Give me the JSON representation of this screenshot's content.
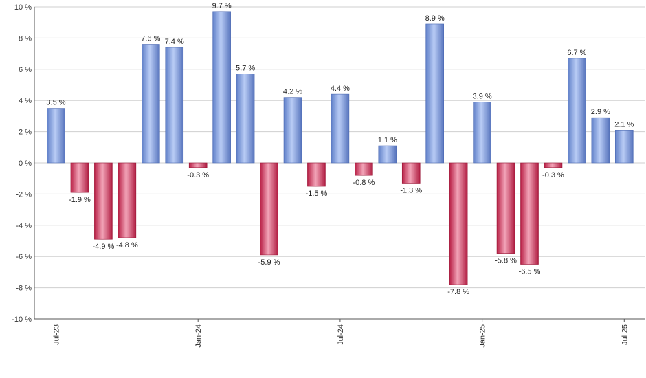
{
  "chart_data": {
    "type": "bar",
    "title": "",
    "xlabel": "",
    "ylabel": "",
    "ylim": [
      -10,
      10
    ],
    "y_ticks": [
      -10,
      -8,
      -6,
      -4,
      -2,
      0,
      2,
      4,
      6,
      8,
      10
    ],
    "y_tick_labels": [
      "-10 %",
      "-8 %",
      "-6 %",
      "-4 %",
      "-2 %",
      "0 %",
      "2 %",
      "4 %",
      "6 %",
      "8 %",
      "10 %"
    ],
    "grid": true,
    "categories": [
      "2023-07",
      "2023-08",
      "2023-09",
      "2023-10",
      "2023-11",
      "2023-12",
      "2024-01",
      "2024-02",
      "2024-03",
      "2024-04",
      "2024-05",
      "2024-06",
      "2024-07",
      "2024-08",
      "2024-09",
      "2024-10",
      "2024-11",
      "2024-12",
      "2025-01",
      "2025-02",
      "2025-03",
      "2025-04",
      "2025-05",
      "2025-06",
      "2025-07"
    ],
    "values": [
      3.5,
      -1.9,
      -4.9,
      -4.8,
      7.6,
      7.4,
      -0.3,
      9.7,
      5.7,
      -5.9,
      4.2,
      -1.5,
      4.4,
      -0.8,
      1.1,
      -1.3,
      8.9,
      -7.8,
      3.9,
      -5.8,
      -6.5,
      -0.3,
      6.7,
      2.9,
      2.1
    ],
    "data_labels": [
      "3.5 %",
      "-1.9 %",
      "-4.9 %",
      "-4.8 %",
      "7.6 %",
      "7.4 %",
      "-0.3 %",
      "9.7 %",
      "5.7 %",
      "-5.9 %",
      "4.2 %",
      "-1.5 %",
      "4.4 %",
      "-0.8 %",
      "1.1 %",
      "-1.3 %",
      "8.9 %",
      "-7.8 %",
      "3.9 %",
      "-5.8 %",
      "-6.5 %",
      "-0.3 %",
      "6.7 %",
      "2.9 %",
      "2.1 %"
    ],
    "x_tick_labels": [
      {
        "index": 0,
        "label": "Jul-23"
      },
      {
        "index": 6,
        "label": "Jan-24"
      },
      {
        "index": 12,
        "label": "Jul-24"
      },
      {
        "index": 18,
        "label": "Jan-25"
      },
      {
        "index": 24,
        "label": "Jul-25"
      }
    ],
    "colors": {
      "positive": "#6f8fd6",
      "positive_light": "#b9ccf5",
      "negative": "#c8284f",
      "negative_light": "#f2a4b8"
    }
  }
}
